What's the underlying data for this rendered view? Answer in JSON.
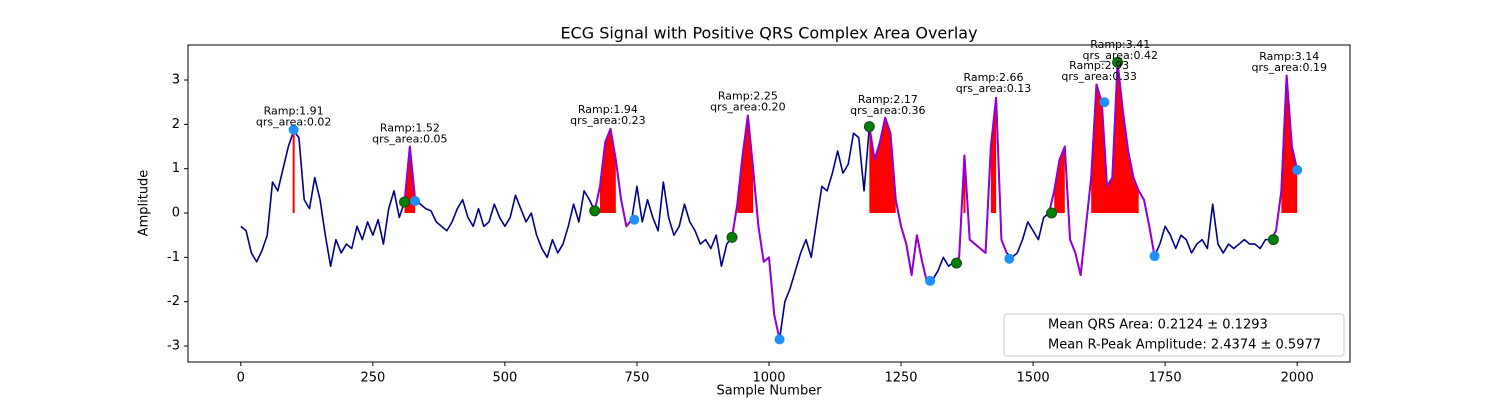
{
  "chart_data": {
    "type": "line",
    "title": "ECG Signal with Positive QRS Complex Area Overlay",
    "xlabel": "Sample Number",
    "ylabel": "Amplitude",
    "xlim": [
      -100,
      2100
    ],
    "ylim": [
      -3.36,
      3.79
    ],
    "xticks": [
      0,
      250,
      500,
      750,
      1000,
      1250,
      1500,
      1750,
      2000
    ],
    "yticks": [
      -3,
      -2,
      -1,
      0,
      1,
      2,
      3
    ],
    "x": [
      0,
      10,
      20,
      30,
      40,
      50,
      60,
      70,
      80,
      90,
      100,
      110,
      120,
      130,
      140,
      150,
      160,
      170,
      180,
      190,
      200,
      210,
      220,
      230,
      240,
      250,
      260,
      270,
      280,
      290,
      300,
      310,
      320,
      330,
      340,
      350,
      360,
      370,
      380,
      390,
      400,
      410,
      420,
      430,
      440,
      450,
      460,
      470,
      480,
      490,
      500,
      510,
      520,
      530,
      540,
      550,
      560,
      570,
      580,
      590,
      600,
      610,
      620,
      630,
      640,
      650,
      660,
      670,
      680,
      690,
      700,
      710,
      720,
      730,
      740,
      750,
      760,
      770,
      780,
      790,
      800,
      810,
      820,
      830,
      840,
      850,
      860,
      870,
      880,
      890,
      900,
      910,
      920,
      930,
      940,
      950,
      960,
      970,
      980,
      990,
      1000,
      1010,
      1020,
      1030,
      1040,
      1050,
      1060,
      1070,
      1080,
      1090,
      1100,
      1110,
      1120,
      1130,
      1140,
      1150,
      1160,
      1170,
      1180,
      1190,
      1200,
      1210,
      1220,
      1230,
      1240,
      1250,
      1260,
      1270,
      1280,
      1290,
      1300,
      1310,
      1320,
      1330,
      1340,
      1350,
      1360,
      1370,
      1380,
      1390,
      1400,
      1410,
      1420,
      1430,
      1440,
      1450,
      1460,
      1470,
      1480,
      1490,
      1500,
      1510,
      1520,
      1530,
      1540,
      1550,
      1560,
      1570,
      1580,
      1590,
      1600,
      1610,
      1620,
      1630,
      1640,
      1650,
      1660,
      1670,
      1680,
      1690,
      1700,
      1710,
      1720,
      1730,
      1740,
      1750,
      1760,
      1770,
      1780,
      1790,
      1800,
      1810,
      1820,
      1830,
      1840,
      1850,
      1860,
      1870,
      1880,
      1890,
      1900,
      1910,
      1920,
      1930,
      1940,
      1950,
      1960,
      1970,
      1980,
      1990,
      2000
    ],
    "series": [
      {
        "color": "#00008b",
        "values": [
          -0.3,
          -0.4,
          -0.9,
          -1.1,
          -0.85,
          -0.5,
          0.7,
          0.5,
          1.0,
          1.5,
          1.85,
          1.7,
          0.3,
          0.1,
          0.8,
          0.3,
          -0.5,
          -1.2,
          -0.6,
          -0.9,
          -0.7,
          -0.8,
          -0.3,
          -0.6,
          -0.2,
          -0.5,
          -0.15,
          -0.7,
          0.1,
          0.5,
          -0.1,
          0.25,
          1.5,
          0.3,
          0.2,
          0.1,
          0.05,
          -0.2,
          -0.3,
          -0.4,
          -0.2,
          0.1,
          0.3,
          -0.1,
          -0.3,
          0.1,
          -0.3,
          -0.2,
          0.2,
          -0.1,
          -0.3,
          -0.1,
          0.4,
          0.1,
          -0.2,
          0.0,
          -0.5,
          -0.8,
          -1.0,
          -0.6,
          -0.9,
          -0.7,
          -0.3,
          0.2,
          -0.2,
          0.5,
          0.3,
          0.05,
          0.6,
          1.6,
          1.9,
          1.2,
          0.3,
          -0.3,
          -0.15,
          0.6,
          -0.2,
          0.3,
          -0.1,
          -0.4,
          0.7,
          -0.1,
          -0.5,
          -0.3,
          0.2,
          -0.2,
          -0.4,
          -0.7,
          -0.6,
          -0.8,
          -0.5,
          -1.2,
          -0.7,
          -0.55,
          0.2,
          1.3,
          2.2,
          1.0,
          -0.3,
          -1.1,
          -1.0,
          -2.3,
          -2.85,
          -2.0,
          -1.7,
          -1.3,
          -0.9,
          -0.6,
          -1.0,
          -0.2,
          0.6,
          0.5,
          0.9,
          1.4,
          0.9,
          1.1,
          1.8,
          1.7,
          0.5,
          1.95,
          1.2,
          1.6,
          2.15,
          1.8,
          0.3,
          -0.3,
          -0.7,
          -1.4,
          -0.5,
          -1.1,
          -1.6,
          -1.5,
          -1.3,
          -1.0,
          -1.2,
          -1.1,
          -1.0,
          1.3,
          -0.6,
          -0.7,
          -0.8,
          -0.9,
          1.5,
          2.6,
          -0.6,
          -0.9,
          -1.0,
          -0.9,
          -0.6,
          -0.2,
          -0.4,
          -0.6,
          -0.1,
          0.0,
          0.5,
          1.2,
          1.5,
          -0.6,
          -0.9,
          -1.4,
          -0.3,
          0.8,
          2.9,
          2.5,
          0.6,
          0.8,
          3.4,
          2.3,
          1.4,
          0.8,
          0.5,
          0.3,
          -0.3,
          -0.97,
          -0.7,
          -0.3,
          -0.5,
          -0.8,
          -0.5,
          -0.6,
          -0.9,
          -0.7,
          -0.6,
          -0.8,
          0.2,
          -0.7,
          -0.9,
          -0.7,
          -0.8,
          -0.7,
          -0.6,
          -0.7,
          -0.7,
          -0.8,
          -0.6,
          -0.6,
          -0.4,
          0.5,
          3.1,
          1.5,
          0.97
        ]
      },
      {
        "color": "#9400d3",
        "values": [
          null,
          null,
          null,
          null,
          null,
          null,
          null,
          null,
          null,
          null,
          null,
          null,
          null,
          null,
          null,
          null,
          null,
          null,
          null,
          null,
          null,
          null,
          null,
          null,
          null,
          null,
          null,
          null,
          null,
          null,
          null,
          0.25,
          1.5,
          0.3,
          null,
          null,
          null,
          null,
          null,
          null,
          null,
          null,
          null,
          null,
          null,
          null,
          null,
          null,
          null,
          null,
          null,
          null,
          null,
          null,
          null,
          null,
          null,
          null,
          null,
          null,
          null,
          null,
          null,
          null,
          null,
          null,
          null,
          0.05,
          0.6,
          1.6,
          1.9,
          1.2,
          0.3,
          -0.3,
          -0.15,
          null,
          null,
          null,
          null,
          null,
          null,
          null,
          null,
          null,
          null,
          null,
          null,
          null,
          null,
          null,
          null,
          null,
          null,
          -0.55,
          0.2,
          1.3,
          2.2,
          1.0,
          -0.3,
          -1.1,
          -1.0,
          -2.3,
          -2.85,
          null,
          null,
          null,
          null,
          null,
          null,
          null,
          null,
          null,
          null,
          null,
          null,
          null,
          null,
          null,
          null,
          1.95,
          1.2,
          1.6,
          2.15,
          1.8,
          0.3,
          -0.3,
          -0.7,
          -1.4,
          -0.5,
          -1.1,
          -1.6,
          null,
          null,
          null,
          null,
          -1.1,
          -1.0,
          1.3,
          -0.6,
          -0.7,
          -0.8,
          -0.9,
          1.5,
          2.6,
          -0.6,
          -0.9,
          null,
          null,
          null,
          null,
          null,
          null,
          null,
          0.0,
          0.5,
          1.2,
          1.5,
          -0.6,
          -0.9,
          -1.4,
          -0.3,
          0.8,
          2.9,
          2.5,
          0.6,
          0.8,
          3.4,
          2.3,
          1.4,
          0.8,
          0.5,
          0.3,
          -0.3,
          -0.97,
          null,
          null,
          null,
          null,
          null,
          null,
          null,
          null,
          null,
          null,
          null,
          null,
          null,
          null,
          null,
          null,
          null,
          null,
          null,
          null,
          null,
          -0.6,
          -0.4,
          0.5,
          3.1,
          1.5,
          0.97
        ]
      }
    ],
    "fill": {
      "color": "#ff0000",
      "values": [
        null,
        null,
        null,
        null,
        null,
        null,
        null,
        null,
        null,
        null,
        1.85,
        null,
        null,
        null,
        null,
        null,
        null,
        null,
        null,
        null,
        null,
        null,
        null,
        null,
        null,
        null,
        null,
        null,
        null,
        null,
        null,
        0.25,
        1.5,
        0.3,
        null,
        null,
        null,
        null,
        null,
        null,
        null,
        null,
        null,
        null,
        null,
        null,
        null,
        null,
        null,
        null,
        null,
        null,
        null,
        null,
        null,
        null,
        null,
        null,
        null,
        null,
        null,
        null,
        null,
        null,
        null,
        null,
        null,
        null,
        0.6,
        1.6,
        1.9,
        1.2,
        null,
        null,
        null,
        null,
        null,
        null,
        null,
        null,
        null,
        null,
        null,
        null,
        null,
        null,
        null,
        null,
        null,
        null,
        null,
        null,
        null,
        null,
        0.2,
        1.3,
        2.2,
        1.0,
        null,
        null,
        null,
        null,
        null,
        null,
        null,
        null,
        null,
        null,
        null,
        null,
        null,
        null,
        null,
        null,
        null,
        null,
        null,
        null,
        null,
        1.95,
        1.2,
        1.6,
        2.15,
        1.8,
        0.3,
        null,
        null,
        null,
        null,
        null,
        null,
        null,
        null,
        null,
        null,
        null,
        null,
        1.3,
        null,
        null,
        null,
        null,
        1.5,
        2.6,
        null,
        null,
        null,
        null,
        null,
        null,
        null,
        null,
        null,
        null,
        0.5,
        1.2,
        1.5,
        null,
        null,
        null,
        null,
        0.8,
        2.9,
        2.5,
        0.6,
        0.8,
        3.4,
        2.3,
        1.4,
        0.8,
        0.5,
        null,
        null,
        null,
        null,
        null,
        null,
        null,
        null,
        null,
        null,
        null,
        null,
        null,
        null,
        null,
        null,
        null,
        null,
        null,
        null,
        null,
        null,
        null,
        null,
        null,
        null,
        0.5,
        3.1,
        1.5,
        0.97
      ]
    },
    "onsets": {
      "color": "#008000",
      "x": [
        310,
        670,
        930,
        1190,
        1355,
        1535,
        1660,
        1955
      ],
      "values": [
        0.25,
        0.05,
        -0.55,
        1.95,
        -1.13,
        0.0,
        3.4,
        -0.6
      ]
    },
    "offsets": {
      "color": "#1e90ff",
      "x": [
        100,
        330,
        745,
        1020,
        1305,
        1455,
        1635,
        1730,
        2000
      ],
      "values": [
        1.88,
        0.27,
        -0.15,
        -2.85,
        -1.53,
        -1.03,
        2.5,
        -0.97,
        0.97
      ]
    },
    "annotations": [
      {
        "x": 100,
        "y": 1.91,
        "lines": [
          "Ramp:1.91",
          "qrs_area:0.02"
        ]
      },
      {
        "x": 320,
        "y": 1.52,
        "lines": [
          "Ramp:1.52",
          "qrs_area:0.05"
        ]
      },
      {
        "x": 695,
        "y": 1.94,
        "lines": [
          "Ramp:1.94",
          "qrs_area:0.23"
        ]
      },
      {
        "x": 960,
        "y": 2.25,
        "lines": [
          "Ramp:2.25",
          "qrs_area:0.20"
        ]
      },
      {
        "x": 1225,
        "y": 2.17,
        "lines": [
          "Ramp:2.17",
          "qrs_area:0.36"
        ]
      },
      {
        "x": 1425,
        "y": 2.66,
        "lines": [
          "Ramp:2.66",
          "qrs_area:0.13"
        ]
      },
      {
        "x": 1625,
        "y": 2.93,
        "lines": [
          "Ramp:2.93",
          "qrs_area:0.33"
        ]
      },
      {
        "x": 1665,
        "y": 3.41,
        "lines": [
          "Ramp:3.41",
          "qrs_area:0.42"
        ]
      },
      {
        "x": 1985,
        "y": 3.14,
        "lines": [
          "Ramp:3.14",
          "qrs_area:0.19"
        ]
      }
    ],
    "legend": {
      "loc": "lower right",
      "entries": [
        "Mean QRS Area: 0.2124 ± 0.1293",
        "Mean R-Peak Amplitude: 2.4374 ± 0.5977"
      ]
    }
  }
}
